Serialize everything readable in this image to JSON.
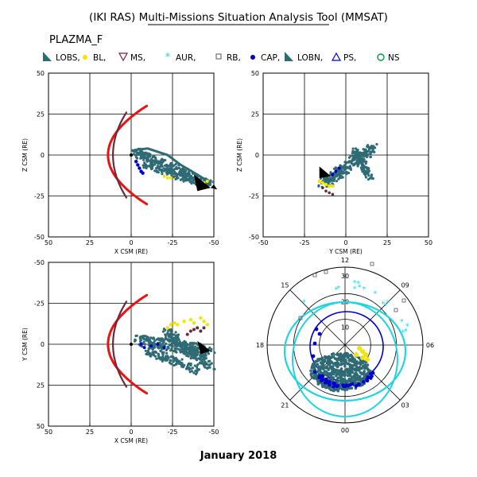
{
  "title": "(IKI RAS) Multi-Missions Situation Analysis Tool (MMSAT)",
  "subtitle": "PLAZMA_F",
  "date_label": "January 2018",
  "legend": [
    {
      "label": "LOBS,",
      "marker": "triangle-filled",
      "color": "#2e6b75"
    },
    {
      "label": "BL,",
      "marker": "dot",
      "color": "#f2e600"
    },
    {
      "label": "MS,",
      "marker": "triangle-down-open",
      "color": "#7a1f3d"
    },
    {
      "label": "AUR,",
      "marker": "asterisk",
      "color": "#22d3e0"
    },
    {
      "label": "RB,",
      "marker": "square-open",
      "color": "#555555"
    },
    {
      "label": "CAP,",
      "marker": "dot",
      "color": "#0000cc"
    },
    {
      "label": "LOBN,",
      "marker": "triangle-filled",
      "color": "#2e6b75"
    },
    {
      "label": "PS,",
      "marker": "triangle-open",
      "color": "#0000cc"
    },
    {
      "label": "NS",
      "marker": "circle-open",
      "color": "#009944"
    }
  ],
  "chart_data": [
    {
      "type": "scatter",
      "name": "xz-panel",
      "xlabel": "X CSM (RE)",
      "ylabel": "Z CSM (RE)",
      "xlim": [
        50,
        -50
      ],
      "ylim": [
        -50,
        50
      ],
      "xticks": [
        "50",
        "25",
        "0",
        "-25",
        "-50"
      ],
      "yticks": [
        "50",
        "25",
        "0",
        "-25",
        "-50"
      ],
      "grid": true,
      "colors": {
        "bow_shock": "#ee1111",
        "magnetopause": "#6b2a3a",
        "orbit": "#2e6b75",
        "bl": "#f2e600",
        "cap": "#0000cc",
        "aur": "#22d3e0"
      }
    },
    {
      "type": "scatter",
      "name": "yz-panel",
      "xlabel": "Y CSM (RE)",
      "ylabel": "Z CSM (RE)",
      "xlim": [
        -50,
        50
      ],
      "ylim": [
        -50,
        50
      ],
      "xticks": [
        "-50",
        "-25",
        "0",
        "25",
        "50"
      ],
      "yticks": [
        "50",
        "25",
        "0",
        "-25",
        "-50"
      ],
      "grid": true
    },
    {
      "type": "scatter",
      "name": "xy-panel",
      "xlabel": "X CSM (RE)",
      "ylabel": "Y CSM (RE)",
      "xlim": [
        50,
        -50
      ],
      "ylim": [
        50,
        -50
      ],
      "xticks": [
        "50",
        "25",
        "0",
        "-25",
        "-50"
      ],
      "yticks": [
        "-50",
        "-25",
        "0",
        "25",
        "50"
      ],
      "grid": true
    },
    {
      "type": "scatter",
      "name": "polar-panel",
      "mlt_labels": [
        "12",
        "15",
        "18",
        "21",
        "00",
        "03",
        "06",
        "09"
      ],
      "radial_labels": [
        "30",
        "20",
        "10"
      ],
      "grid": true
    }
  ]
}
